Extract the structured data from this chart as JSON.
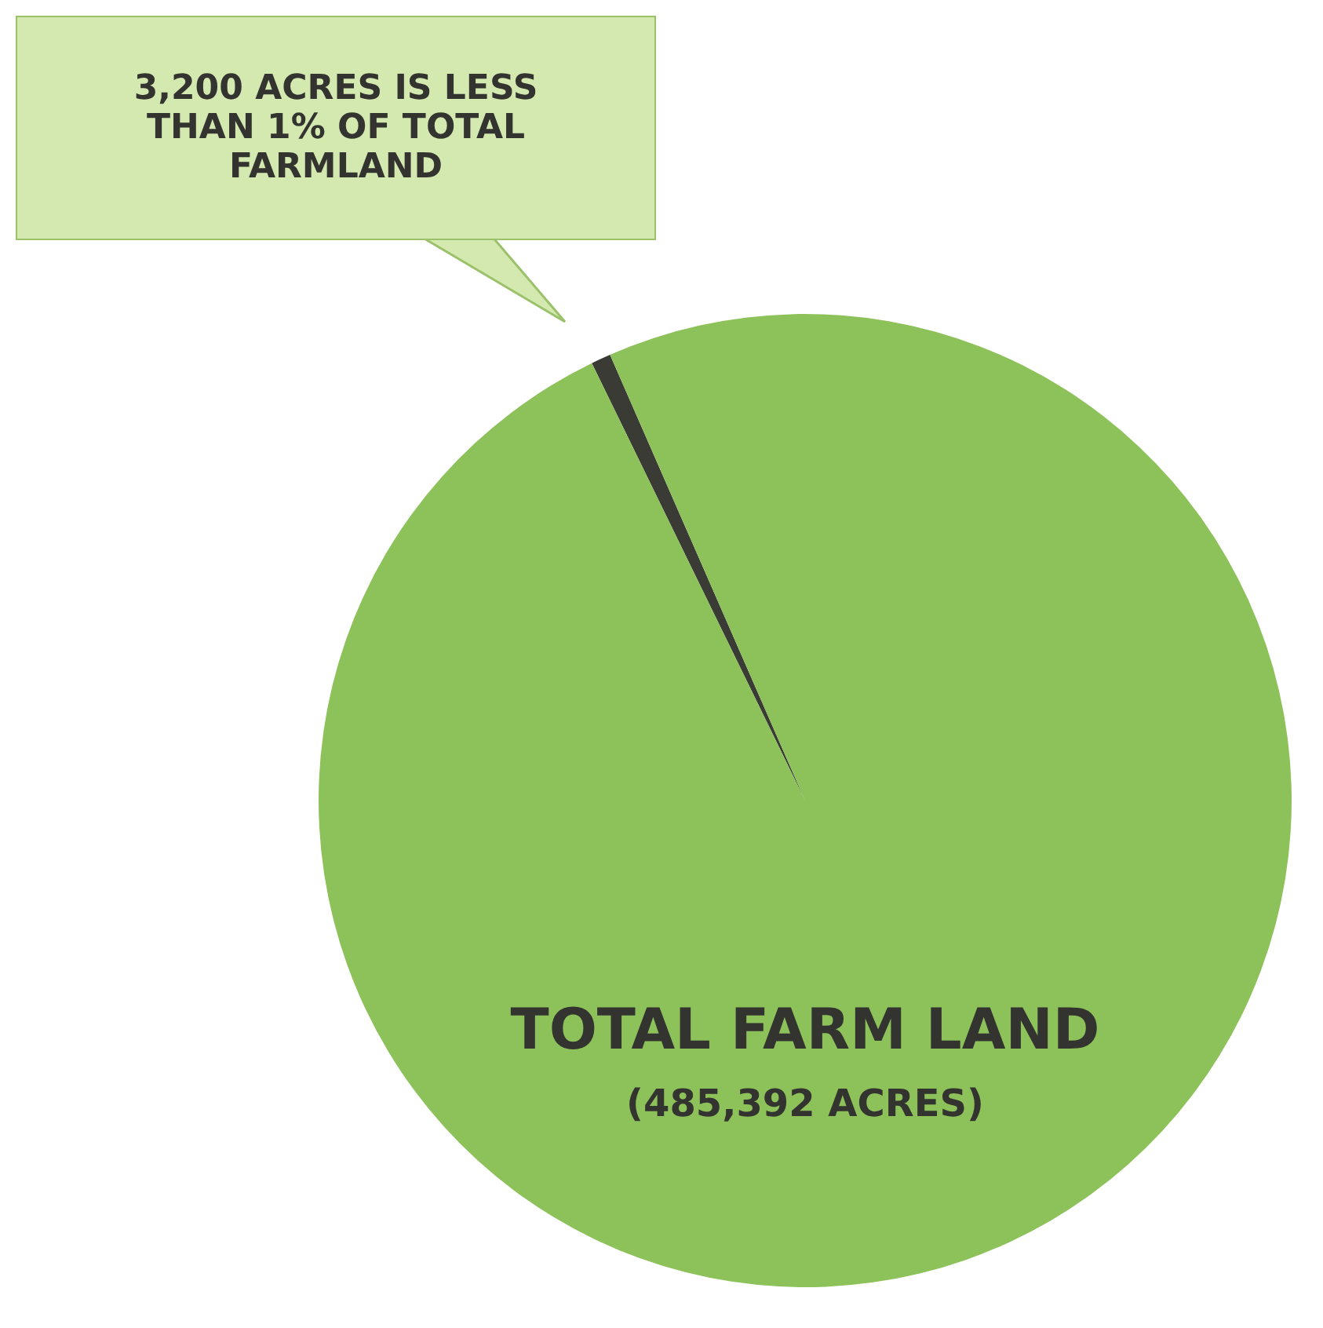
{
  "chart_data": {
    "type": "pie",
    "categories": [
      null,
      "TOTAL FARM LAND"
    ],
    "values": [
      3200,
      485392
    ],
    "colors": [
      "#3b3b36",
      "#8dc25a"
    ],
    "value_labels": [
      null,
      "(485,392 ACRES)"
    ],
    "annotations": [
      "3,200 ACRES IS LESS THAN 1% OF TOTAL FARMLAND"
    ]
  }
}
